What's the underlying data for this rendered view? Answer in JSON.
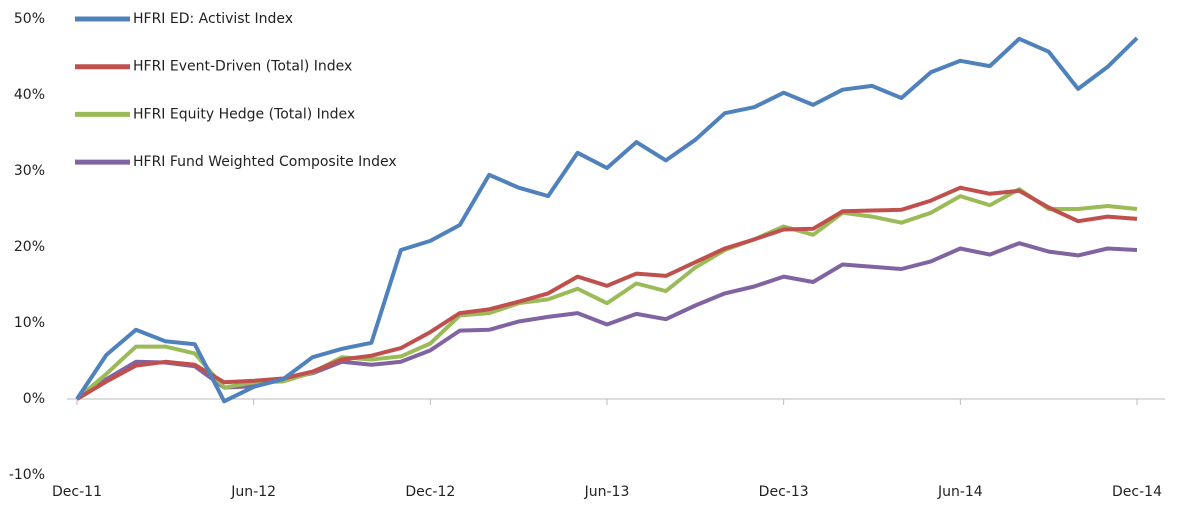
{
  "chart_data": {
    "type": "line",
    "categories": [
      "Dec-11",
      null,
      null,
      null,
      null,
      null,
      "Jun-12",
      null,
      null,
      null,
      null,
      null,
      "Dec-12",
      null,
      null,
      null,
      null,
      null,
      "Jun-13",
      null,
      null,
      null,
      null,
      null,
      "Dec-13",
      null,
      null,
      null,
      null,
      null,
      "Jun-14",
      null,
      null,
      null,
      null,
      null,
      "Dec-14"
    ],
    "series": [
      {
        "name": "HFRI ED: Activist Index",
        "color": "#4f81bd",
        "values": [
          0,
          5.8,
          9.1,
          7.6,
          7.2,
          -0.3,
          1.6,
          2.6,
          5.5,
          6.6,
          7.4,
          19.6,
          20.8,
          22.9,
          29.5,
          27.8,
          26.7,
          32.4,
          30.4,
          33.8,
          31.4,
          34.1,
          37.6,
          38.4,
          40.3,
          38.7,
          40.7,
          41.2,
          39.6,
          43.0,
          44.5,
          43.8,
          47.4,
          45.7,
          40.8,
          43.7,
          47.5
        ]
      },
      {
        "name": "HFRI Event-Driven (Total) Index",
        "color": "#c0504d",
        "values": [
          0,
          2.3,
          4.4,
          4.9,
          4.5,
          2.2,
          2.4,
          2.7,
          3.6,
          5.2,
          5.7,
          6.7,
          8.8,
          11.3,
          11.8,
          12.8,
          13.9,
          16.1,
          14.9,
          16.5,
          16.2,
          18.0,
          19.8,
          21.0,
          22.3,
          22.4,
          24.7,
          24.8,
          24.9,
          26.1,
          27.8,
          27.0,
          27.4,
          25.2,
          23.4,
          24.0,
          23.7
        ]
      },
      {
        "name": "HFRI Equity Hedge (Total) Index",
        "color": "#9bbb59",
        "values": [
          0,
          3.3,
          6.9,
          6.9,
          6.0,
          1.5,
          2.2,
          2.3,
          3.5,
          5.5,
          5.2,
          5.6,
          7.3,
          11.0,
          11.3,
          12.6,
          13.1,
          14.5,
          12.6,
          15.2,
          14.2,
          17.3,
          19.6,
          21.0,
          22.7,
          21.6,
          24.5,
          24.0,
          23.2,
          24.5,
          26.7,
          25.5,
          27.6,
          25.0,
          25.0,
          25.4,
          25.0
        ]
      },
      {
        "name": "HFRI Fund Weighted Composite Index",
        "color": "#8064a2",
        "values": [
          0,
          2.6,
          4.9,
          4.8,
          4.3,
          1.5,
          1.7,
          2.6,
          3.4,
          4.9,
          4.5,
          4.9,
          6.4,
          9.0,
          9.1,
          10.2,
          10.8,
          11.3,
          9.8,
          11.2,
          10.5,
          12.3,
          13.9,
          14.8,
          16.1,
          15.4,
          17.7,
          17.4,
          17.1,
          18.1,
          19.8,
          19.0,
          20.5,
          19.4,
          18.9,
          19.8,
          19.6
        ]
      }
    ],
    "ylim": [
      -10,
      50
    ],
    "yticks": [
      {
        "value": -10,
        "label": "-10%"
      },
      {
        "value": 0,
        "label": "0%"
      },
      {
        "value": 10,
        "label": "10%"
      },
      {
        "value": 20,
        "label": "20%"
      },
      {
        "value": 30,
        "label": "30%"
      },
      {
        "value": 40,
        "label": "40%"
      },
      {
        "value": 50,
        "label": "50%"
      }
    ],
    "grid": false,
    "legend": "top-left"
  }
}
